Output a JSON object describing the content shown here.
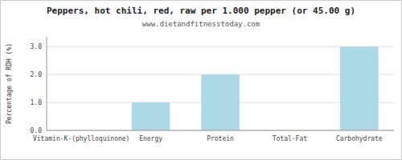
{
  "chart_data": {
    "type": "bar",
    "title": "Peppers, hot chili, red, raw per 1.000 pepper (or 45.00 g)",
    "subtitle": "www.dietandfitnesstoday.com",
    "categories": [
      "Vitamin-K-(phylloquinone)",
      "Energy",
      "Protein",
      "Total-Fat",
      "Carbohydrate"
    ],
    "values": [
      0.0,
      1.0,
      2.0,
      0.0,
      3.0
    ],
    "color": "#add8e6",
    "ylabel": "Percentage of RDH (%)",
    "ylim": [
      0,
      3.35
    ],
    "yticks": [
      {
        "value": 0.0,
        "label": "0.0"
      },
      {
        "value": 1.0,
        "label": "1.0"
      },
      {
        "value": 2.0,
        "label": "2.0"
      },
      {
        "value": 3.0,
        "label": "3.0"
      }
    ],
    "grid": true
  }
}
